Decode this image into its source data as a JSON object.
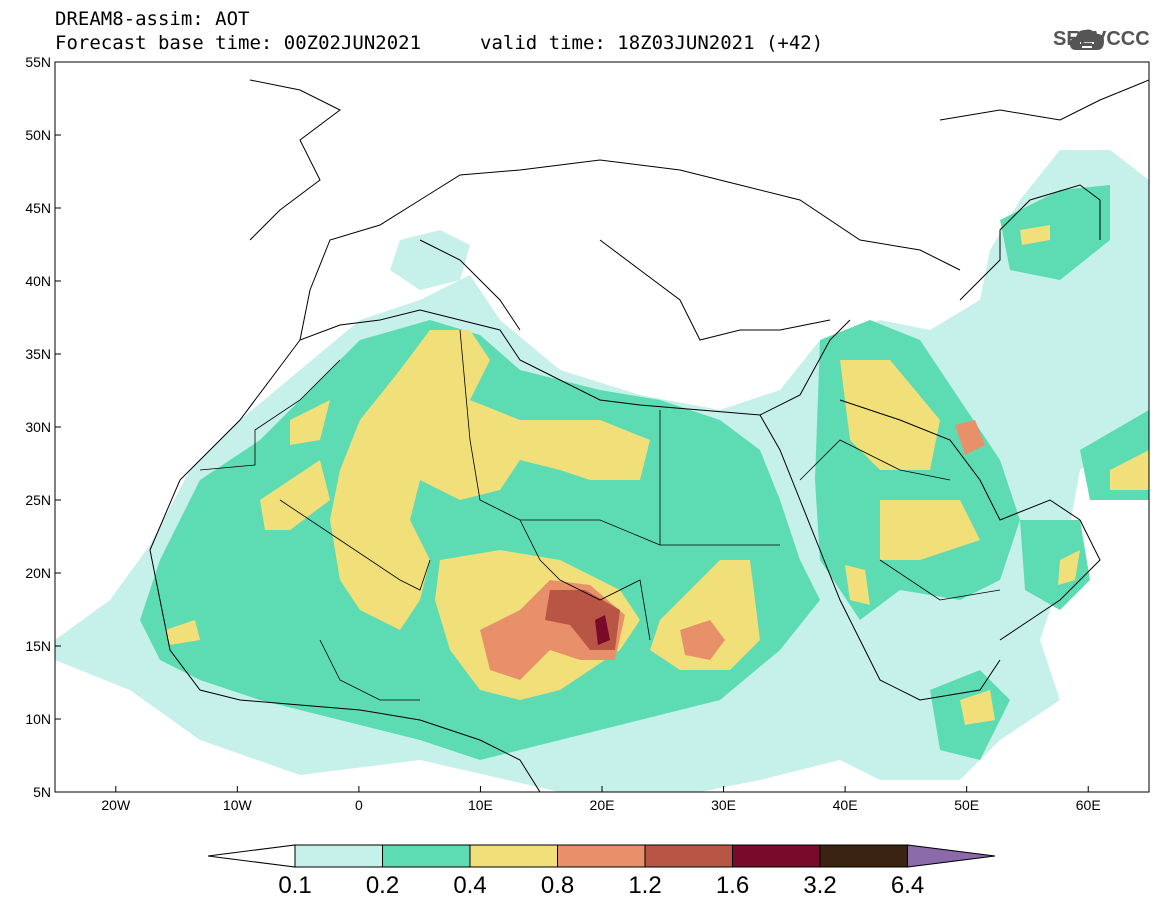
{
  "header": {
    "line1": "DREAM8-assim: AOT",
    "base_time": "Forecast base time: 00Z02JUN2021",
    "valid_time": "valid time: 18Z03JUN2021 (+42)",
    "logo_text": "SEEVCCC"
  },
  "map": {
    "lat_labels": [
      "55N",
      "50N",
      "45N",
      "40N",
      "35N",
      "30N",
      "25N",
      "20N",
      "15N",
      "10N",
      "5N"
    ],
    "lon_labels": [
      "20W",
      "10W",
      "0",
      "10E",
      "20E",
      "30E",
      "40E",
      "50E",
      "60E"
    ],
    "extent": {
      "lon_min": -25,
      "lon_max": 65,
      "lat_min": 5,
      "lat_max": 55
    }
  },
  "colorbar": {
    "levels": [
      "0.1",
      "0.2",
      "0.4",
      "0.8",
      "1.2",
      "1.6",
      "3.2",
      "6.4"
    ],
    "colors": [
      "#ffffff",
      "#c6f0ea",
      "#5ddbb2",
      "#f1e07a",
      "#e8906a",
      "#b85545",
      "#7a0a2a",
      "#3a2310",
      "#8a6aa8"
    ]
  },
  "colors": {
    "c1": "#c6f0ea",
    "c2": "#5ddbb2",
    "c3": "#f1e07a",
    "c4": "#e8906a",
    "c5": "#b85545",
    "c6": "#7a0a2a"
  },
  "icons": [
    "cloud-logo-icon"
  ]
}
